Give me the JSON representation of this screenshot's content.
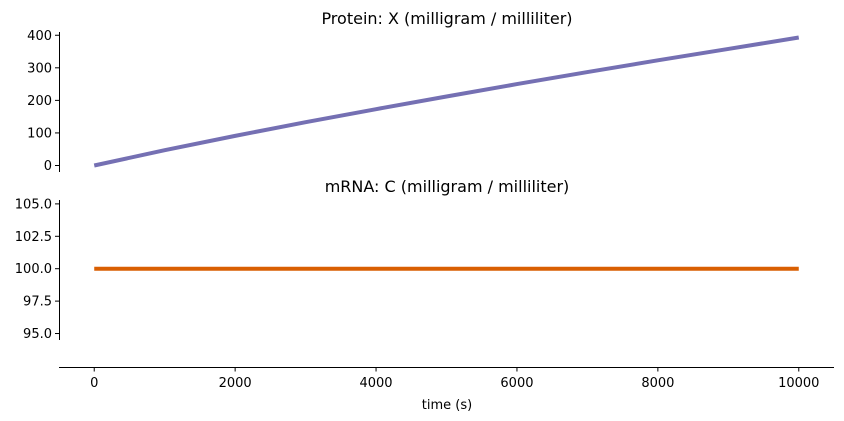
{
  "chart_data": [
    {
      "type": "line",
      "title": "Protein: X (milligram / milliliter)",
      "xlabel": "",
      "ylabel": "",
      "xlim": [
        -500,
        10500
      ],
      "ylim": [
        -20,
        410
      ],
      "yticks": [
        0,
        100,
        200,
        300,
        400
      ],
      "ytick_labels": [
        "0",
        "100",
        "200",
        "300",
        "400"
      ],
      "grid": false,
      "series": [
        {
          "color": "#7570b3",
          "x": [
            0,
            1000,
            2000,
            3000,
            4000,
            5000,
            6000,
            7000,
            8000,
            9000,
            10000
          ],
          "y": [
            0,
            47,
            91,
            133,
            173,
            212,
            250,
            287,
            323,
            358,
            393
          ]
        }
      ]
    },
    {
      "type": "line",
      "title": "mRNA: C (milligram / milliliter)",
      "xlabel": "time (s)",
      "ylabel": "",
      "xlim": [
        -500,
        10500
      ],
      "ylim": [
        94.5,
        105.3
      ],
      "yticks": [
        95.0,
        97.5,
        100.0,
        102.5,
        105.0
      ],
      "ytick_labels": [
        "95.0",
        "97.5",
        "100.0",
        "102.5",
        "105.0"
      ],
      "xticks": [
        0,
        2000,
        4000,
        6000,
        8000,
        10000
      ],
      "xtick_labels": [
        "0",
        "2000",
        "4000",
        "6000",
        "8000",
        "10000"
      ],
      "grid": false,
      "series": [
        {
          "color": "#d95f02",
          "x": [
            0,
            10000
          ],
          "y": [
            100,
            100
          ]
        }
      ]
    }
  ]
}
